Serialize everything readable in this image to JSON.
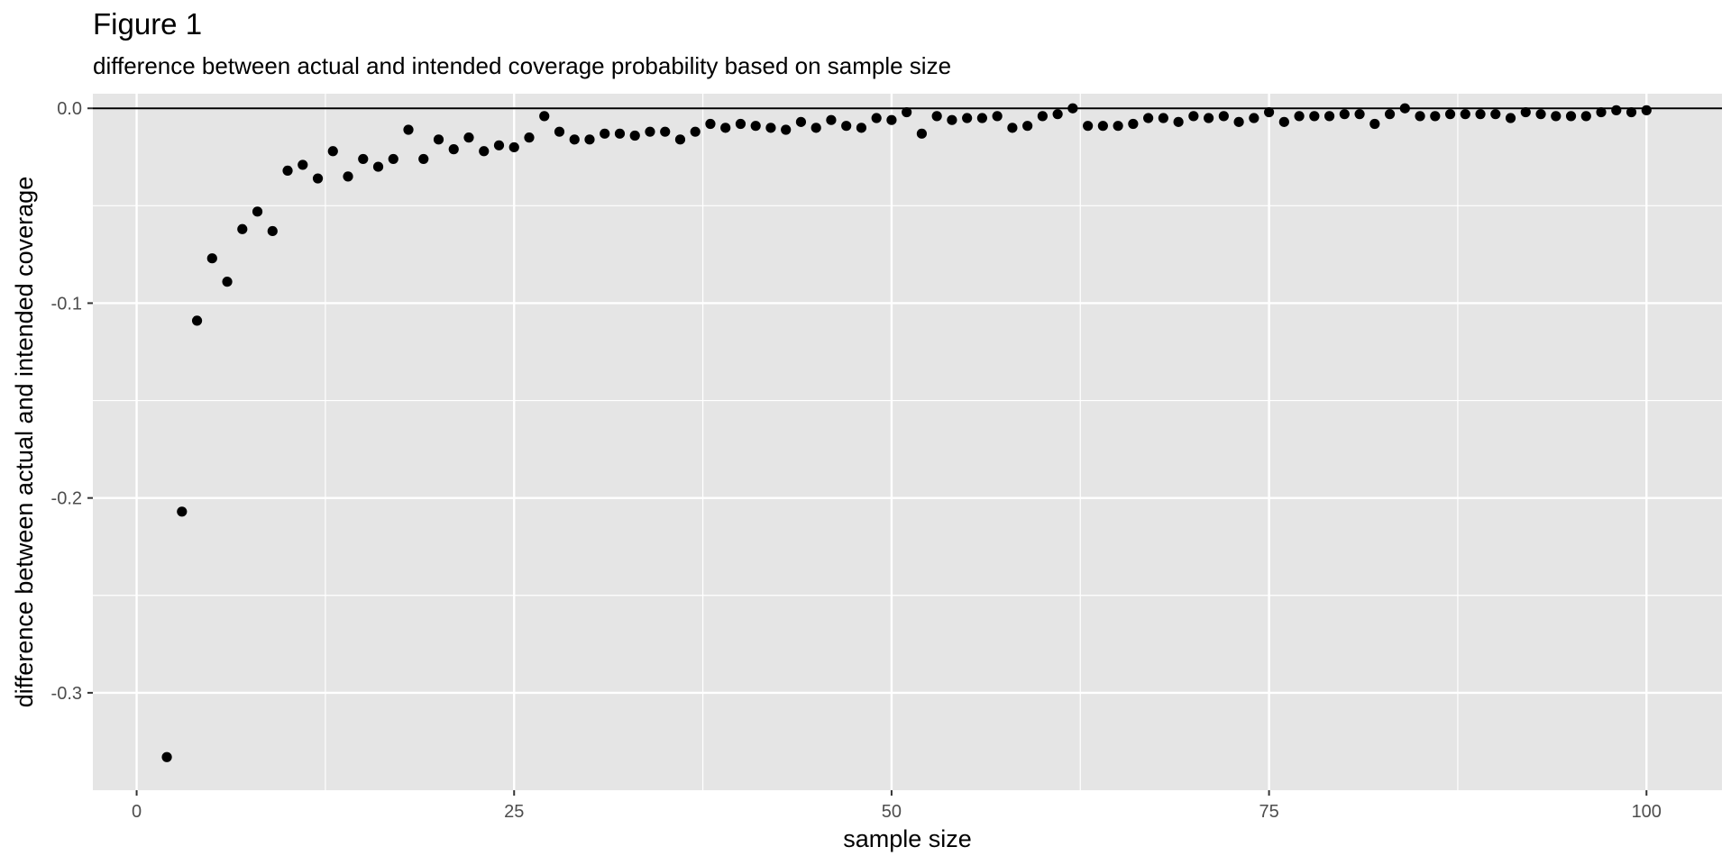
{
  "chart_data": {
    "type": "scatter",
    "title": "Figure 1",
    "subtitle": "difference between actual and intended coverage probability based on sample size",
    "xlabel": "sample size",
    "ylabel": "difference between actual and intended coverage",
    "xlim": [
      -2.9,
      105
    ],
    "ylim": [
      -0.35,
      0.0075
    ],
    "x_ticks": [
      0,
      25,
      50,
      75,
      100
    ],
    "x_tick_labels": [
      "0",
      "25",
      "50",
      "75",
      "100"
    ],
    "y_ticks": [
      0.0,
      -0.1,
      -0.2,
      -0.3
    ],
    "y_tick_labels": [
      "0.0",
      "-0.1",
      "-0.2",
      "-0.3"
    ],
    "hline": 0.0,
    "grid": true,
    "colors": {
      "panel": "#e5e5e5",
      "grid": "#ffffff",
      "point": "#000000",
      "tick_text": "#4d4d4d"
    },
    "x": [
      2,
      3,
      4,
      5,
      6,
      7,
      8,
      9,
      10,
      11,
      12,
      13,
      14,
      15,
      16,
      17,
      18,
      19,
      20,
      21,
      22,
      23,
      24,
      25,
      26,
      27,
      28,
      29,
      30,
      31,
      32,
      33,
      34,
      35,
      36,
      37,
      38,
      39,
      40,
      41,
      42,
      43,
      44,
      45,
      46,
      47,
      48,
      49,
      50,
      51,
      52,
      53,
      54,
      55,
      56,
      57,
      58,
      59,
      60,
      61,
      62,
      63,
      64,
      65,
      66,
      67,
      68,
      69,
      70,
      71,
      72,
      73,
      74,
      75,
      76,
      77,
      78,
      79,
      80,
      81,
      82,
      83,
      84,
      85,
      86,
      87,
      88,
      89,
      90,
      91,
      92,
      93,
      94,
      95,
      96,
      97,
      98,
      99,
      100
    ],
    "y": [
      -0.333,
      -0.207,
      -0.109,
      -0.077,
      -0.089,
      -0.062,
      -0.053,
      -0.063,
      -0.032,
      -0.029,
      -0.036,
      -0.022,
      -0.035,
      -0.026,
      -0.03,
      -0.026,
      -0.011,
      -0.026,
      -0.016,
      -0.021,
      -0.015,
      -0.022,
      -0.019,
      -0.02,
      -0.015,
      -0.004,
      -0.012,
      -0.016,
      -0.016,
      -0.013,
      -0.013,
      -0.014,
      -0.012,
      -0.012,
      -0.016,
      -0.012,
      -0.008,
      -0.01,
      -0.008,
      -0.009,
      -0.01,
      -0.011,
      -0.007,
      -0.01,
      -0.006,
      -0.009,
      -0.01,
      -0.005,
      -0.006,
      -0.002,
      -0.013,
      -0.004,
      -0.006,
      -0.005,
      -0.005,
      -0.004,
      -0.01,
      -0.009,
      -0.004,
      -0.003,
      0.0,
      -0.009,
      -0.009,
      -0.009,
      -0.008,
      -0.005,
      -0.005,
      -0.007,
      -0.004,
      -0.005,
      -0.004,
      -0.007,
      -0.005,
      -0.002,
      -0.007,
      -0.004,
      -0.004,
      -0.004,
      -0.003,
      -0.003,
      -0.008,
      -0.003,
      0.0,
      -0.004,
      -0.004,
      -0.003,
      -0.003,
      -0.003,
      -0.003,
      -0.005,
      -0.002,
      -0.003,
      -0.004,
      -0.004,
      -0.004,
      -0.002,
      -0.001,
      -0.002,
      -0.001
    ]
  }
}
